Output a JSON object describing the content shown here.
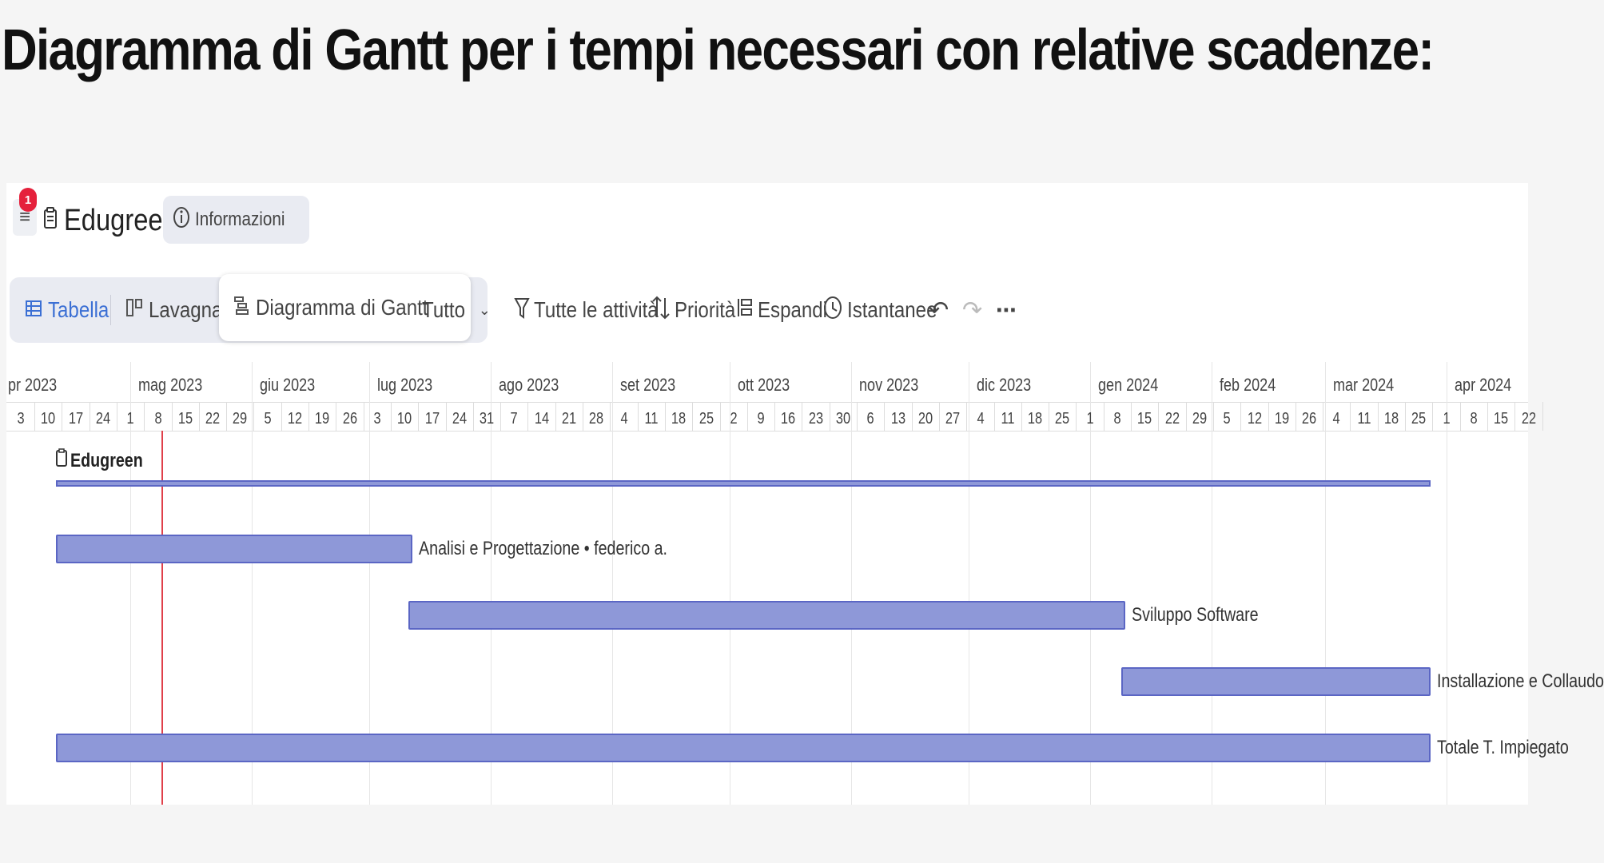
{
  "heading": "Diagramma di Gantt per i tempi necessari con relative scadenze:",
  "header": {
    "notification_count": "1",
    "project_title": "Edugreen",
    "info_label": "Informazioni"
  },
  "views": {
    "table": "Tabella",
    "board": "Lavagna",
    "gantt": "Diagramma di Gantt",
    "filter_all": "Tutto"
  },
  "toolbar": {
    "all_activities": "Tutte le attività",
    "priority": "Priorità",
    "expand": "Espandi",
    "snapshots": "Istantanee"
  },
  "timeline": {
    "months": [
      "pr 2023",
      "mag 2023",
      "giu 2023",
      "lug 2023",
      "ago 2023",
      "set 2023",
      "ott 2023",
      "nov 2023",
      "dic 2023",
      "gen 2024",
      "feb 2024",
      "mar 2024",
      "apr 2024"
    ],
    "weeks": [
      "3",
      "10",
      "17",
      "24",
      "1",
      "8",
      "15",
      "22",
      "29",
      "5",
      "12",
      "19",
      "26",
      "3",
      "10",
      "17",
      "24",
      "31",
      "7",
      "14",
      "21",
      "28",
      "4",
      "11",
      "18",
      "25",
      "2",
      "9",
      "16",
      "23",
      "30",
      "6",
      "13",
      "20",
      "27",
      "4",
      "11",
      "18",
      "25",
      "1",
      "8",
      "15",
      "22",
      "29",
      "5",
      "12",
      "19",
      "26",
      "4",
      "11",
      "18",
      "25",
      "1",
      "8",
      "15",
      "22"
    ],
    "today": "2023-05-09"
  },
  "project": {
    "name": "Edugreen",
    "start": "2023-04-12",
    "end": "2024-03-28"
  },
  "tasks": [
    {
      "label": "Analisi e Progettazione • federico a.",
      "start": "2023-04-12",
      "end": "2023-07-12"
    },
    {
      "label": "Sviluppo Software",
      "start": "2023-07-11",
      "end": "2024-01-10"
    },
    {
      "label": "Installazione e Collaudo",
      "start": "2024-01-09",
      "end": "2024-03-28"
    },
    {
      "label": "Totale T. Impiegato",
      "start": "2023-04-12",
      "end": "2024-03-28"
    }
  ],
  "colors": {
    "bar_fill": "#8e98d8",
    "bar_border": "#5b66c4",
    "today_line": "#e0404a",
    "badge": "#e5213c",
    "active_view": "#3b6fd4"
  }
}
